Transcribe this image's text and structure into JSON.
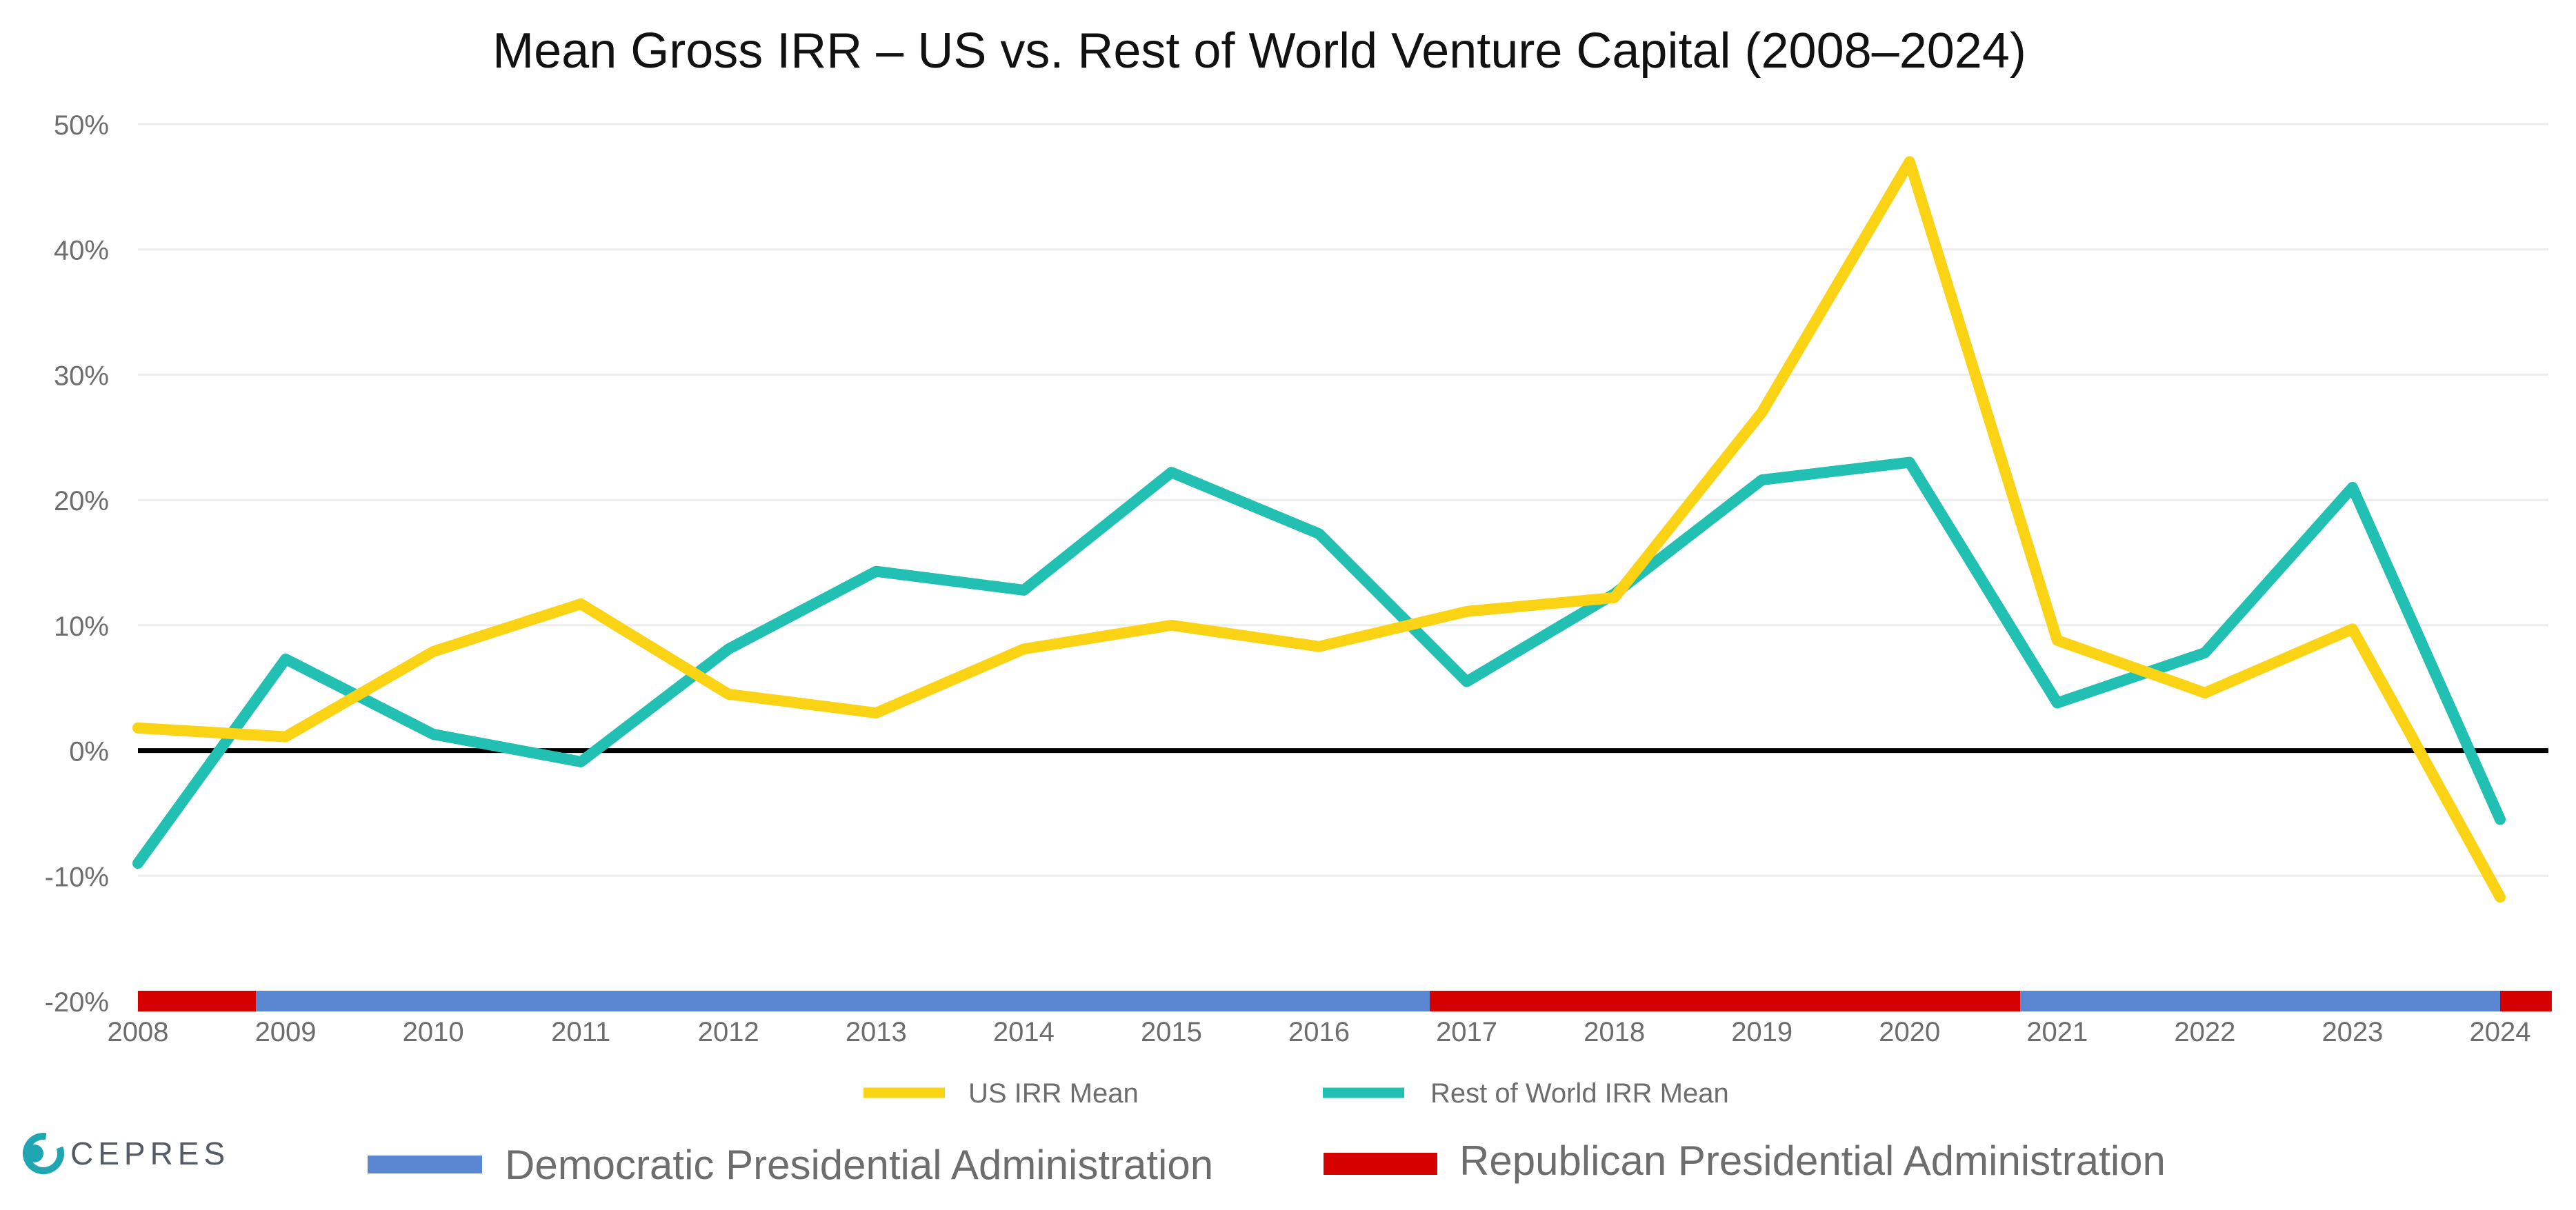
{
  "brand": {
    "name": "CEPRES",
    "accent": "#1fa6b2",
    "text_color": "#555c66"
  },
  "colors": {
    "us": "#fad414",
    "row": "#21c0b2",
    "democratic": "#5b87d2",
    "republican": "#d50000",
    "zero_line": "#000000",
    "grid": "#ececec"
  },
  "chart_data": {
    "type": "line",
    "title": "Mean Gross IRR – US vs. Rest of World Venture Capital (2008–2024)",
    "xlabel": "",
    "ylabel": "",
    "x": [
      "2008",
      "2009",
      "2010",
      "2011",
      "2012",
      "2013",
      "2014",
      "2015",
      "2016",
      "2017",
      "2018",
      "2019",
      "2020",
      "2021",
      "2022",
      "2023",
      "2024"
    ],
    "ylim": [
      -20,
      50
    ],
    "yticks": [
      -20,
      -10,
      0,
      10,
      20,
      30,
      40,
      50
    ],
    "ytick_labels": [
      "-20%",
      "-10%",
      "0%",
      "10%",
      "20%",
      "30%",
      "40%",
      "50%"
    ],
    "grid": true,
    "series": [
      {
        "name": "US IRR Mean",
        "color": "#fad414",
        "values": [
          1.8,
          1.1,
          7.9,
          11.7,
          4.5,
          3.0,
          8.1,
          10.0,
          8.3,
          11.1,
          12.2,
          27.0,
          47.0,
          8.8,
          4.6,
          9.7,
          -11.7
        ]
      },
      {
        "name": "Rest of World IRR Mean",
        "color": "#21c0b2",
        "values": [
          -9.0,
          7.3,
          1.3,
          -0.9,
          8.1,
          14.3,
          12.8,
          22.2,
          17.3,
          5.5,
          12.5,
          21.6,
          23.0,
          3.8,
          7.8,
          21.0,
          -5.5
        ]
      }
    ],
    "administration_band": {
      "y": -20,
      "segments": [
        {
          "party": "Republican",
          "start": 2008.0,
          "end": 2008.8
        },
        {
          "party": "Democratic",
          "start": 2008.8,
          "end": 2016.75
        },
        {
          "party": "Republican",
          "start": 2016.75,
          "end": 2020.75
        },
        {
          "party": "Democratic",
          "start": 2020.75,
          "end": 2024.0
        },
        {
          "party": "Republican",
          "start": 2024.0,
          "end": 2024.35
        }
      ]
    },
    "legend": {
      "placement": "bottom",
      "series_items": [
        "US IRR Mean",
        "Rest of World IRR Mean"
      ],
      "band_items": [
        "Democratic Presidential Administration",
        "Republican Presidential Administration"
      ]
    }
  }
}
